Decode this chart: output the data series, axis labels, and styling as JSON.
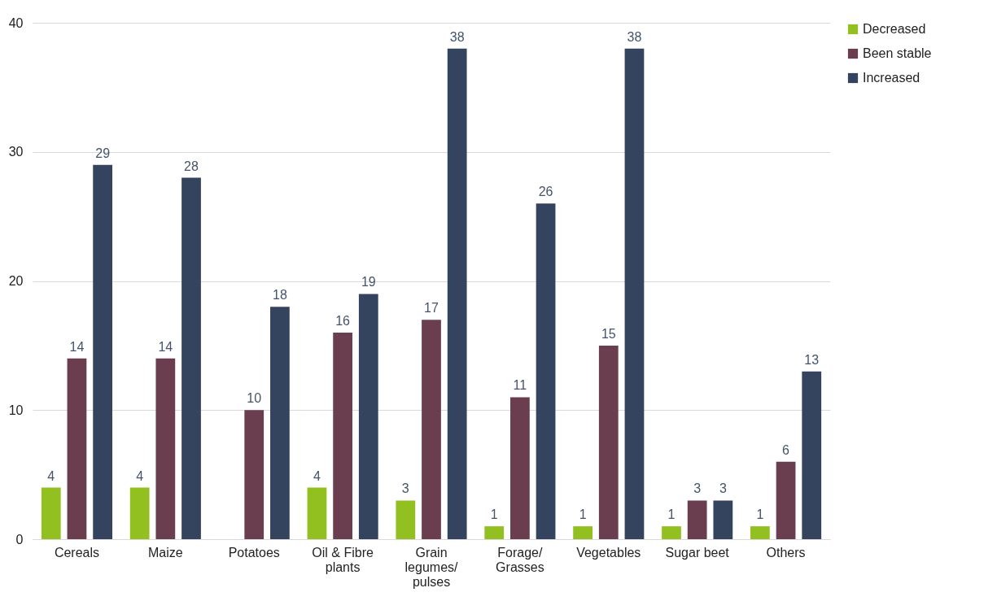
{
  "chart_data": {
    "type": "bar",
    "categories": [
      "Cereals",
      "Maize",
      "Potatoes",
      "Oil & Fibre plants",
      "Grain legumes/ pulses",
      "Forage/ Grasses",
      "Vegetables",
      "Sugar beet",
      "Others"
    ],
    "series": [
      {
        "name": "Decreased",
        "color": "#92c020",
        "values": [
          4,
          4,
          null,
          4,
          3,
          1,
          1,
          1,
          1
        ]
      },
      {
        "name": "Been stable",
        "color": "#6a3e4f",
        "values": [
          14,
          14,
          10,
          16,
          17,
          11,
          15,
          3,
          6
        ]
      },
      {
        "name": "Increased",
        "color": "#34445f",
        "values": [
          29,
          28,
          18,
          19,
          38,
          26,
          38,
          3,
          13
        ]
      }
    ],
    "ylim": [
      0,
      40
    ],
    "yticks": [
      0,
      10,
      20,
      30,
      40
    ],
    "grid": "y",
    "legend": "right",
    "data_labels": true
  }
}
